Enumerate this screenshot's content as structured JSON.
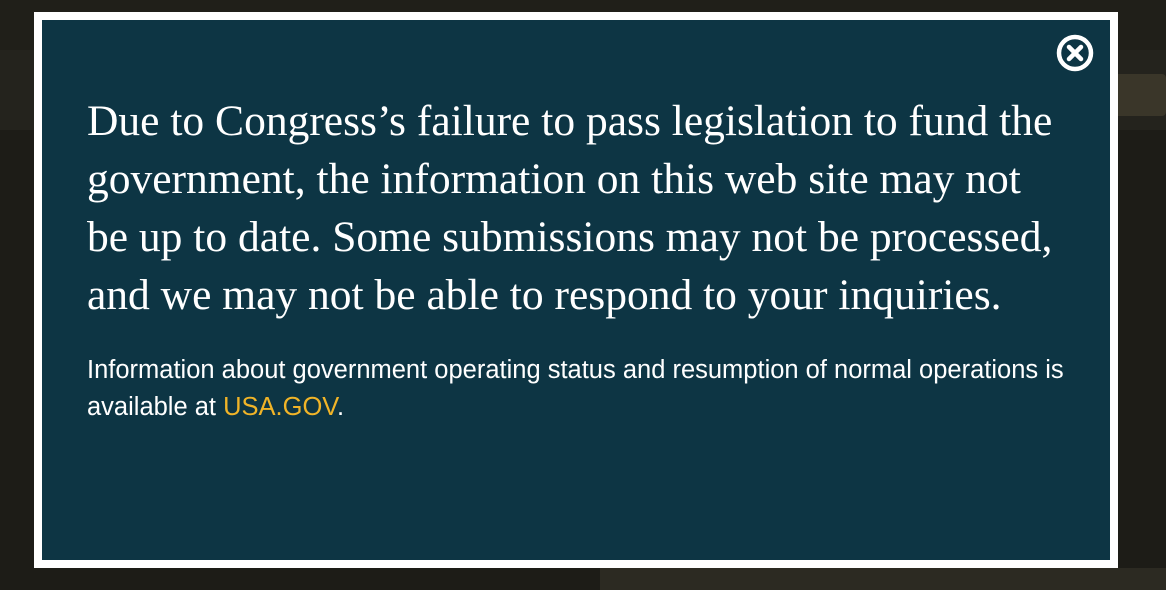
{
  "modal": {
    "headline": "Due to Congress’s failure to pass legislation to fund the government, the information on this web site may not be up to date. Some submissions may not be processed, and we may not be able to respond to your inquiries.",
    "info_prefix": "Information about government operating status and resumption of normal operations is available at ",
    "link_text": "USA.GOV",
    "info_suffix": ".",
    "close_icon": "close-circle-icon"
  },
  "colors": {
    "modal_background": "#0d3544",
    "modal_border": "#ffffff",
    "link": "#f0b428",
    "text": "#ffffff"
  }
}
